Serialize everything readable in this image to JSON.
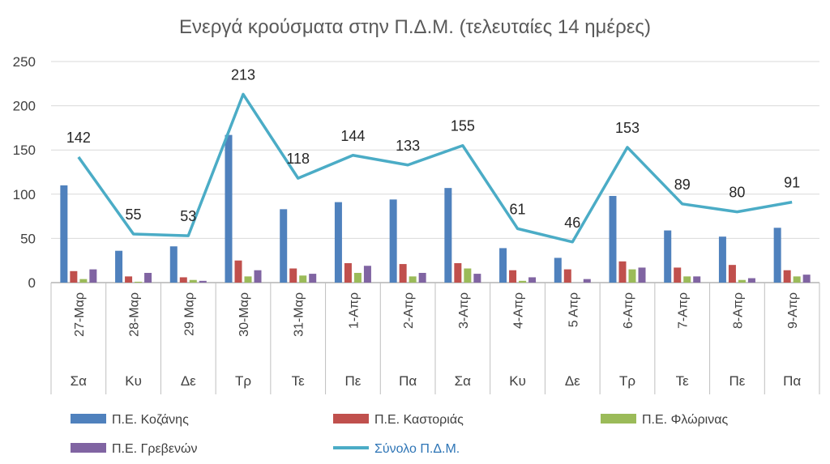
{
  "chart_data": {
    "type": "bar",
    "title": "Ενεργά κρούσματα στην Π.Δ.Μ. (τελευταίες 14 ημέρες)",
    "xlabel": "",
    "ylabel": "",
    "ylim": [
      0,
      250
    ],
    "yticks": [
      0,
      50,
      100,
      150,
      200,
      250
    ],
    "grid": true,
    "legend_position": "bottom",
    "categories": [
      "27-Μαρ",
      "28-Μαρ",
      "29 Μαρ",
      "30-Μαρ",
      "31-Μαρ",
      "1-Απρ",
      "2-Απρ",
      "3-Απρ",
      "4-Απρ",
      "5 Απρ",
      "6-Απρ",
      "7-Απρ",
      "8-Απρ",
      "9-Απρ"
    ],
    "days": [
      "Σα",
      "Κυ",
      "Δε",
      "Τρ",
      "Τε",
      "Πε",
      "Πα",
      "Σα",
      "Κυ",
      "Δε",
      "Τρ",
      "Τε",
      "Πε",
      "Πα"
    ],
    "series": [
      {
        "name": "Π.Ε. Κοζάνης",
        "kind": "bar",
        "color": "#4f81bd",
        "values": [
          110,
          36,
          41,
          167,
          83,
          91,
          94,
          107,
          39,
          28,
          98,
          59,
          52,
          62
        ]
      },
      {
        "name": "Π.Ε. Καστοριάς",
        "kind": "bar",
        "color": "#c0504d",
        "values": [
          13,
          7,
          6,
          25,
          16,
          22,
          21,
          22,
          14,
          15,
          24,
          17,
          20,
          14
        ]
      },
      {
        "name": "Π.Ε. Φλώρινας",
        "kind": "bar",
        "color": "#9bbb59",
        "values": [
          4,
          1,
          3,
          7,
          8,
          11,
          7,
          16,
          2,
          0,
          15,
          7,
          3,
          7
        ]
      },
      {
        "name": "Π.Ε. Γρεβενών",
        "kind": "bar",
        "color": "#8064a2",
        "values": [
          15,
          11,
          2,
          14,
          10,
          19,
          11,
          10,
          6,
          4,
          17,
          7,
          5,
          9
        ]
      },
      {
        "name": "Σύνολο Π.Δ.Μ.",
        "kind": "line",
        "color": "#4bacc6",
        "values": [
          142,
          55,
          53,
          213,
          118,
          144,
          133,
          155,
          61,
          46,
          153,
          89,
          80,
          91
        ],
        "labels": [
          "142",
          "55",
          "53",
          "213",
          "118",
          "144",
          "133",
          "155",
          "61",
          "46",
          "153",
          "89",
          "80",
          "91"
        ]
      }
    ]
  }
}
